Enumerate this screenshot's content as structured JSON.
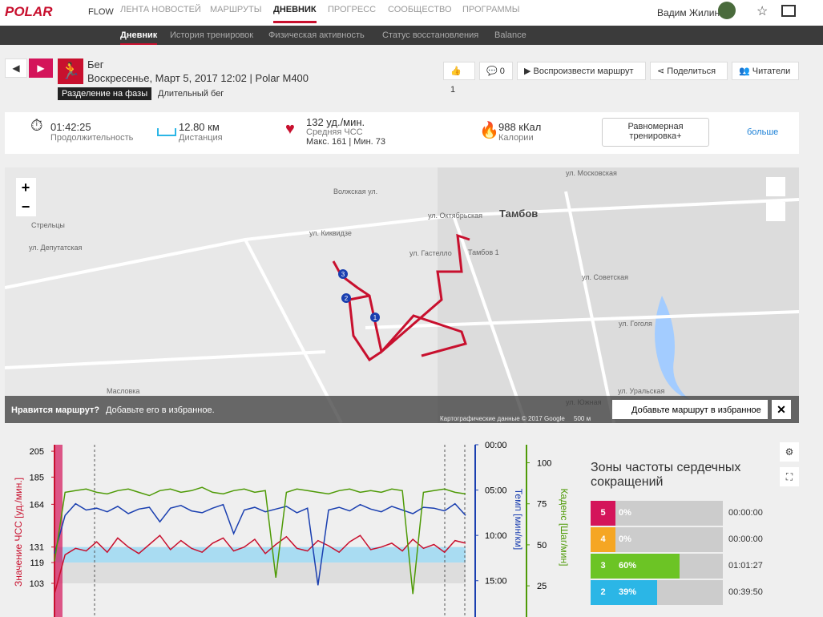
{
  "nav": {
    "logo": "POLAR",
    "product": "FLOW",
    "items": [
      "ЛЕНТА НОВОСТЕЙ",
      "МАРШРУТЫ",
      "ДНЕВНИК",
      "ПРОГРЕСС",
      "СООБЩЕСТВО",
      "ПРОГРАММЫ"
    ],
    "user": "Вадим Жилин"
  },
  "subnav": [
    "Дневник",
    "История тренировок",
    "Физическая активность",
    "Статус восстановления",
    "Balance"
  ],
  "header": {
    "sport": "Бег",
    "date": "Воскресенье, Март 5, 2017 12:02",
    "device": "Polar M400",
    "badge": "Разделение на фазы",
    "phase": "Длительный бег",
    "likes": "1",
    "comments": "0",
    "buttons": [
      "Воспроизвести маршрут",
      "Поделиться",
      "Читатели"
    ]
  },
  "summary": {
    "duration": "01:42:25",
    "duration_label": "Продолжительность",
    "distance": "12.80 км",
    "distance_label": "Дистанция",
    "hr": "132 уд./мин.",
    "hr_label": "Средняя ЧСС",
    "hr_max": "Макс. 161",
    "hr_min": "Мин. 73",
    "calories": "988 кКал",
    "calories_label": "Калории",
    "benefit": "Равномерная тренировка+",
    "more": "больше"
  },
  "map": {
    "labels": [
      "Тамбов",
      "Стрельцы",
      "Масловка",
      "ул. Октябрьская",
      "ул. Гастелло",
      "Тамбов 1",
      "ул. Киквидзе",
      "ул. Депутатская",
      "Волжская ул.",
      "ул. Советская",
      "ул. Гоголя",
      "ул. Уральская",
      "ул. Южная",
      "ул. Московская"
    ],
    "markers": [
      "1",
      "2",
      "3"
    ],
    "banner_q": "Нравится маршрут?",
    "banner_text": "Добавьте его в избранное.",
    "favorite": "Добавьте маршрут в избранное",
    "copyright": "Картографические данные © 2017 Google",
    "scale": "500 м"
  },
  "chart": {
    "hr_label": "Значение ЧСС [уд./мин.]",
    "pace_label": "Темп [мин/км]",
    "cadence_label": "Каденс [Шаг/мин]",
    "ylim": [
      77,
      210
    ],
    "yticks": [
      205,
      185,
      164,
      131,
      119,
      103
    ],
    "pace_lim": [
      0,
      19
    ],
    "pace_ticks": [
      {
        "value": 0,
        "label": "00:00"
      },
      {
        "value": 5,
        "label": "05:00"
      },
      {
        "value": 10,
        "label": "10:00"
      },
      {
        "value": 15,
        "label": "15:00"
      }
    ],
    "cadence_lim": [
      6,
      111
    ],
    "cadence_ticks": [
      100,
      75,
      50,
      25
    ],
    "series": [
      {
        "name": "hr",
        "color": "#c8102e",
        "values": [
          95,
          125,
          130,
          128,
          135,
          127,
          138,
          131,
          126,
          133,
          140,
          129,
          136,
          130,
          127,
          134,
          138,
          128,
          131,
          137,
          126,
          133,
          139,
          130,
          128,
          136,
          132,
          127,
          135,
          140,
          129,
          131,
          134,
          128,
          137,
          130,
          133,
          127,
          136,
          134
        ]
      },
      {
        "name": "pace",
        "color": "#1a3fb0",
        "values": [
          12,
          7.8,
          6.5,
          7.2,
          7.0,
          7.4,
          6.8,
          7.6,
          7.1,
          6.9,
          8.5,
          7.0,
          6.7,
          7.3,
          7.5,
          7.0,
          6.6,
          9.8,
          7.2,
          6.9,
          7.4,
          7.1,
          6.8,
          7.5,
          7.0,
          15.5,
          7.2,
          6.9,
          7.3,
          6.6,
          7.1,
          7.4,
          6.8,
          7.2,
          7.6,
          6.9,
          7.0,
          7.3,
          6.5,
          7.8
        ]
      },
      {
        "name": "cadence",
        "color": "#4e9a06",
        "values": [
          40,
          82,
          83,
          84,
          82,
          81,
          83,
          84,
          82,
          80,
          83,
          84,
          82,
          83,
          85,
          82,
          81,
          83,
          84,
          82,
          83,
          30,
          82,
          84,
          83,
          82,
          81,
          83,
          84,
          82,
          83,
          82,
          84,
          83,
          20,
          82,
          83,
          84,
          82,
          81
        ]
      }
    ]
  },
  "zones": {
    "title": "Зоны частоты сердечных сокращений",
    "rows": [
      {
        "zone": "5",
        "value": 0,
        "label": "0%",
        "time": "00:00:00",
        "color": "#d4145a"
      },
      {
        "zone": "4",
        "value": 0,
        "label": "0%",
        "time": "00:00:00",
        "color": "#f5a623"
      },
      {
        "zone": "3",
        "value": 60,
        "label": "60%",
        "time": "01:01:27",
        "color": "#6cc425"
      },
      {
        "zone": "2",
        "value": 39,
        "label": "39%",
        "time": "00:39:50",
        "color": "#2bb6e6"
      }
    ]
  }
}
